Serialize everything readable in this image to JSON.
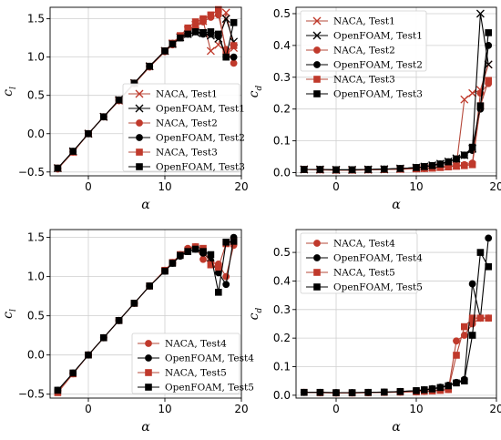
{
  "figure": {
    "colors": {
      "naca": "#c0392b",
      "naca_line": "#b5483a",
      "openfoam": "#000000",
      "grid": "#cfcfcf"
    }
  },
  "chart_data": [
    {
      "type": "line",
      "xlabel": "α",
      "ylabel": "c_l",
      "xlim": [
        -5,
        20
      ],
      "ylim": [
        -0.55,
        1.65
      ],
      "xticks": [
        0,
        10,
        20
      ],
      "yticks": [
        -0.5,
        0.0,
        0.5,
        1.0,
        1.5
      ],
      "tick_labels_x": [
        "0",
        "10",
        "20"
      ],
      "tick_labels_y": [
        "−0.5",
        "0.0",
        "0.5",
        "1.0",
        "1.5"
      ],
      "grid": true,
      "legend": "bottom-right",
      "series": [
        {
          "name": "NACA, Test1",
          "source": "naca",
          "marker": "x",
          "x": [
            -4,
            -2,
            0,
            2,
            4,
            6,
            8,
            10,
            11,
            12,
            13,
            14,
            15,
            16,
            17,
            18,
            19
          ],
          "y": [
            -0.45,
            -0.24,
            0.0,
            0.22,
            0.43,
            0.66,
            0.88,
            1.08,
            1.18,
            1.26,
            1.35,
            1.42,
            1.47,
            1.08,
            1.16,
            1.58,
            1.12
          ]
        },
        {
          "name": "OpenFOAM, Test1",
          "source": "openfoam",
          "marker": "x",
          "x": [
            -4,
            -2,
            0,
            2,
            4,
            6,
            8,
            10,
            11,
            12,
            13,
            14,
            15,
            16,
            17,
            18,
            19
          ],
          "y": [
            -0.45,
            -0.23,
            0.0,
            0.22,
            0.44,
            0.66,
            0.88,
            1.08,
            1.17,
            1.26,
            1.3,
            1.32,
            1.31,
            1.28,
            1.24,
            1.5,
            1.2
          ]
        },
        {
          "name": "NACA, Test2",
          "source": "naca",
          "marker": "circle",
          "x": [
            -4,
            -2,
            0,
            2,
            4,
            6,
            8,
            10,
            11,
            12,
            13,
            14,
            15,
            16,
            17,
            18,
            19
          ],
          "y": [
            -0.46,
            -0.24,
            0.0,
            0.22,
            0.43,
            0.65,
            0.87,
            1.07,
            1.16,
            1.25,
            1.34,
            1.4,
            1.46,
            1.52,
            1.55,
            1.1,
            0.92
          ]
        },
        {
          "name": "OpenFOAM, Test2",
          "source": "openfoam",
          "marker": "circle",
          "x": [
            -4,
            -2,
            0,
            2,
            4,
            6,
            8,
            10,
            11,
            12,
            13,
            14,
            15,
            16,
            17,
            18,
            19
          ],
          "y": [
            -0.45,
            -0.23,
            0.0,
            0.22,
            0.44,
            0.66,
            0.88,
            1.08,
            1.18,
            1.26,
            1.3,
            1.33,
            1.3,
            1.3,
            1.27,
            1.0,
            1.0
          ]
        },
        {
          "name": "NACA, Test3",
          "source": "naca",
          "marker": "square",
          "x": [
            -4,
            -2,
            0,
            2,
            4,
            6,
            8,
            10,
            11,
            12,
            13,
            14,
            15,
            16,
            17,
            18,
            19
          ],
          "y": [
            -0.45,
            -0.24,
            0.0,
            0.22,
            0.44,
            0.66,
            0.88,
            1.08,
            1.18,
            1.28,
            1.38,
            1.46,
            1.5,
            1.55,
            1.62,
            1.05,
            1.15
          ]
        },
        {
          "name": "OpenFOAM, Test3",
          "source": "openfoam",
          "marker": "square",
          "x": [
            -4,
            -2,
            0,
            2,
            4,
            6,
            8,
            10,
            11,
            12,
            13,
            14,
            15,
            16,
            17,
            18,
            19
          ],
          "y": [
            -0.45,
            -0.23,
            0.0,
            0.22,
            0.44,
            0.66,
            0.88,
            1.08,
            1.17,
            1.25,
            1.3,
            1.33,
            1.32,
            1.33,
            1.3,
            1.0,
            1.45
          ]
        }
      ]
    },
    {
      "type": "line",
      "xlabel": "α",
      "ylabel": "c_d",
      "xlim": [
        -5,
        20
      ],
      "ylim": [
        -0.01,
        0.52
      ],
      "xticks": [
        0,
        10,
        20
      ],
      "yticks": [
        0.0,
        0.1,
        0.2,
        0.3,
        0.4,
        0.5
      ],
      "tick_labels_x": [
        "0",
        "10",
        "20"
      ],
      "tick_labels_y": [
        "0.0",
        "0.1",
        "0.2",
        "0.3",
        "0.4",
        "0.5"
      ],
      "grid": true,
      "legend": "top-left",
      "series": [
        {
          "name": "NACA, Test1",
          "source": "naca",
          "marker": "x",
          "x": [
            -4,
            -2,
            0,
            2,
            4,
            6,
            8,
            10,
            11,
            12,
            13,
            14,
            15,
            16,
            17,
            18,
            19
          ],
          "y": [
            0.01,
            0.009,
            0.008,
            0.008,
            0.009,
            0.01,
            0.011,
            0.013,
            0.014,
            0.016,
            0.018,
            0.02,
            0.022,
            0.23,
            0.25,
            0.26,
            0.34
          ]
        },
        {
          "name": "OpenFOAM, Test1",
          "source": "openfoam",
          "marker": "x",
          "x": [
            -4,
            -2,
            0,
            2,
            4,
            6,
            8,
            10,
            11,
            12,
            13,
            14,
            15,
            16,
            17,
            18,
            19
          ],
          "y": [
            0.01,
            0.01,
            0.009,
            0.009,
            0.01,
            0.011,
            0.013,
            0.016,
            0.019,
            0.023,
            0.028,
            0.035,
            0.045,
            0.055,
            0.075,
            0.5,
            0.34
          ]
        },
        {
          "name": "NACA, Test2",
          "source": "naca",
          "marker": "circle",
          "x": [
            -4,
            -2,
            0,
            2,
            4,
            6,
            8,
            10,
            11,
            12,
            13,
            14,
            15,
            16,
            17,
            18,
            19
          ],
          "y": [
            0.01,
            0.009,
            0.008,
            0.008,
            0.009,
            0.01,
            0.011,
            0.012,
            0.013,
            0.015,
            0.017,
            0.019,
            0.022,
            0.025,
            0.03,
            0.25,
            0.28
          ]
        },
        {
          "name": "OpenFOAM, Test2",
          "source": "openfoam",
          "marker": "circle",
          "x": [
            -4,
            -2,
            0,
            2,
            4,
            6,
            8,
            10,
            11,
            12,
            13,
            14,
            15,
            16,
            17,
            18,
            19
          ],
          "y": [
            0.01,
            0.01,
            0.009,
            0.009,
            0.01,
            0.011,
            0.013,
            0.016,
            0.019,
            0.022,
            0.027,
            0.034,
            0.043,
            0.055,
            0.07,
            0.2,
            0.4
          ]
        },
        {
          "name": "NACA, Test3",
          "source": "naca",
          "marker": "square",
          "x": [
            -4,
            -2,
            0,
            2,
            4,
            6,
            8,
            10,
            11,
            12,
            13,
            14,
            15,
            16,
            17,
            18,
            19
          ],
          "y": [
            0.01,
            0.009,
            0.008,
            0.008,
            0.009,
            0.01,
            0.011,
            0.012,
            0.013,
            0.014,
            0.016,
            0.018,
            0.02,
            0.022,
            0.025,
            0.21,
            0.29
          ]
        },
        {
          "name": "OpenFOAM, Test3",
          "source": "openfoam",
          "marker": "square",
          "x": [
            -4,
            -2,
            0,
            2,
            4,
            6,
            8,
            10,
            11,
            12,
            13,
            14,
            15,
            16,
            17,
            18,
            19
          ],
          "y": [
            0.01,
            0.01,
            0.009,
            0.009,
            0.01,
            0.011,
            0.013,
            0.016,
            0.019,
            0.022,
            0.027,
            0.034,
            0.043,
            0.055,
            0.08,
            0.21,
            0.44
          ]
        }
      ]
    },
    {
      "type": "line",
      "xlabel": "α",
      "ylabel": "c_l",
      "xlim": [
        -5,
        20
      ],
      "ylim": [
        -0.55,
        1.6
      ],
      "xticks": [
        0,
        10,
        20
      ],
      "yticks": [
        -0.5,
        0.0,
        0.5,
        1.0,
        1.5
      ],
      "tick_labels_x": [
        "0",
        "10",
        "20"
      ],
      "tick_labels_y": [
        "−0.5",
        "0.0",
        "0.5",
        "1.0",
        "1.5"
      ],
      "grid": true,
      "legend": "bottom-right",
      "series": [
        {
          "name": "NACA, Test4",
          "source": "naca",
          "marker": "circle",
          "x": [
            -4,
            -2,
            0,
            2,
            4,
            6,
            8,
            10,
            11,
            12,
            13,
            14,
            15,
            16,
            17,
            18,
            19
          ],
          "y": [
            -0.46,
            -0.24,
            0.0,
            0.22,
            0.44,
            0.66,
            0.88,
            1.08,
            1.18,
            1.28,
            1.36,
            1.38,
            1.22,
            1.18,
            1.16,
            1.0,
            1.4
          ]
        },
        {
          "name": "OpenFOAM, Test4",
          "source": "openfoam",
          "marker": "circle",
          "x": [
            -4,
            -2,
            0,
            2,
            4,
            6,
            8,
            10,
            11,
            12,
            13,
            14,
            15,
            16,
            17,
            18,
            19
          ],
          "y": [
            -0.45,
            -0.23,
            0.0,
            0.22,
            0.44,
            0.66,
            0.88,
            1.07,
            1.17,
            1.26,
            1.32,
            1.35,
            1.3,
            1.2,
            1.05,
            0.9,
            1.5
          ]
        },
        {
          "name": "NACA, Test5",
          "source": "naca",
          "marker": "square",
          "x": [
            -4,
            -2,
            0,
            2,
            4,
            6,
            8,
            10,
            11,
            12,
            13,
            14,
            15,
            16,
            17,
            18,
            19
          ],
          "y": [
            -0.48,
            -0.24,
            0.0,
            0.22,
            0.44,
            0.66,
            0.88,
            1.08,
            1.18,
            1.28,
            1.34,
            1.38,
            1.36,
            1.15,
            1.12,
            1.42,
            1.45
          ]
        },
        {
          "name": "OpenFOAM, Test5",
          "source": "openfoam",
          "marker": "square",
          "x": [
            -4,
            -2,
            0,
            2,
            4,
            6,
            8,
            10,
            11,
            12,
            13,
            14,
            15,
            16,
            17,
            18,
            19
          ],
          "y": [
            -0.45,
            -0.23,
            0.0,
            0.22,
            0.44,
            0.66,
            0.88,
            1.07,
            1.17,
            1.27,
            1.32,
            1.35,
            1.32,
            1.28,
            0.8,
            1.44,
            1.45
          ]
        }
      ]
    },
    {
      "type": "line",
      "xlabel": "α",
      "ylabel": "c_d",
      "xlim": [
        -5,
        20
      ],
      "ylim": [
        -0.01,
        0.58
      ],
      "xticks": [
        0,
        10,
        20
      ],
      "yticks": [
        0.0,
        0.1,
        0.2,
        0.3,
        0.4,
        0.5
      ],
      "tick_labels_x": [
        "0",
        "10",
        "20"
      ],
      "tick_labels_y": [
        "0.0",
        "0.1",
        "0.2",
        "0.3",
        "0.4",
        "0.5"
      ],
      "grid": true,
      "legend": "top-left",
      "series": [
        {
          "name": "NACA, Test4",
          "source": "naca",
          "marker": "circle",
          "x": [
            -4,
            -2,
            0,
            2,
            4,
            6,
            8,
            10,
            11,
            12,
            13,
            14,
            15,
            16,
            17,
            18,
            19
          ],
          "y": [
            0.01,
            0.009,
            0.008,
            0.008,
            0.009,
            0.01,
            0.011,
            0.013,
            0.014,
            0.016,
            0.018,
            0.02,
            0.19,
            0.21,
            0.25,
            0.27,
            0.27
          ]
        },
        {
          "name": "OpenFOAM, Test4",
          "source": "openfoam",
          "marker": "circle",
          "x": [
            -4,
            -2,
            0,
            2,
            4,
            6,
            8,
            10,
            11,
            12,
            13,
            14,
            15,
            16,
            17,
            18,
            19
          ],
          "y": [
            0.01,
            0.01,
            0.009,
            0.009,
            0.01,
            0.011,
            0.013,
            0.016,
            0.019,
            0.023,
            0.028,
            0.035,
            0.045,
            0.055,
            0.39,
            0.27,
            0.55
          ]
        },
        {
          "name": "NACA, Test5",
          "source": "naca",
          "marker": "square",
          "x": [
            -4,
            -2,
            0,
            2,
            4,
            6,
            8,
            10,
            11,
            12,
            13,
            14,
            15,
            16,
            17,
            18,
            19
          ],
          "y": [
            0.01,
            0.009,
            0.008,
            0.008,
            0.009,
            0.01,
            0.011,
            0.012,
            0.014,
            0.015,
            0.017,
            0.02,
            0.14,
            0.24,
            0.27,
            0.27,
            0.27
          ]
        },
        {
          "name": "OpenFOAM, Test5",
          "source": "openfoam",
          "marker": "square",
          "x": [
            -4,
            -2,
            0,
            2,
            4,
            6,
            8,
            10,
            11,
            12,
            13,
            14,
            15,
            16,
            17,
            18,
            19
          ],
          "y": [
            0.01,
            0.01,
            0.009,
            0.009,
            0.01,
            0.011,
            0.013,
            0.016,
            0.019,
            0.022,
            0.027,
            0.033,
            0.043,
            0.05,
            0.21,
            0.5,
            0.45
          ]
        }
      ]
    }
  ]
}
